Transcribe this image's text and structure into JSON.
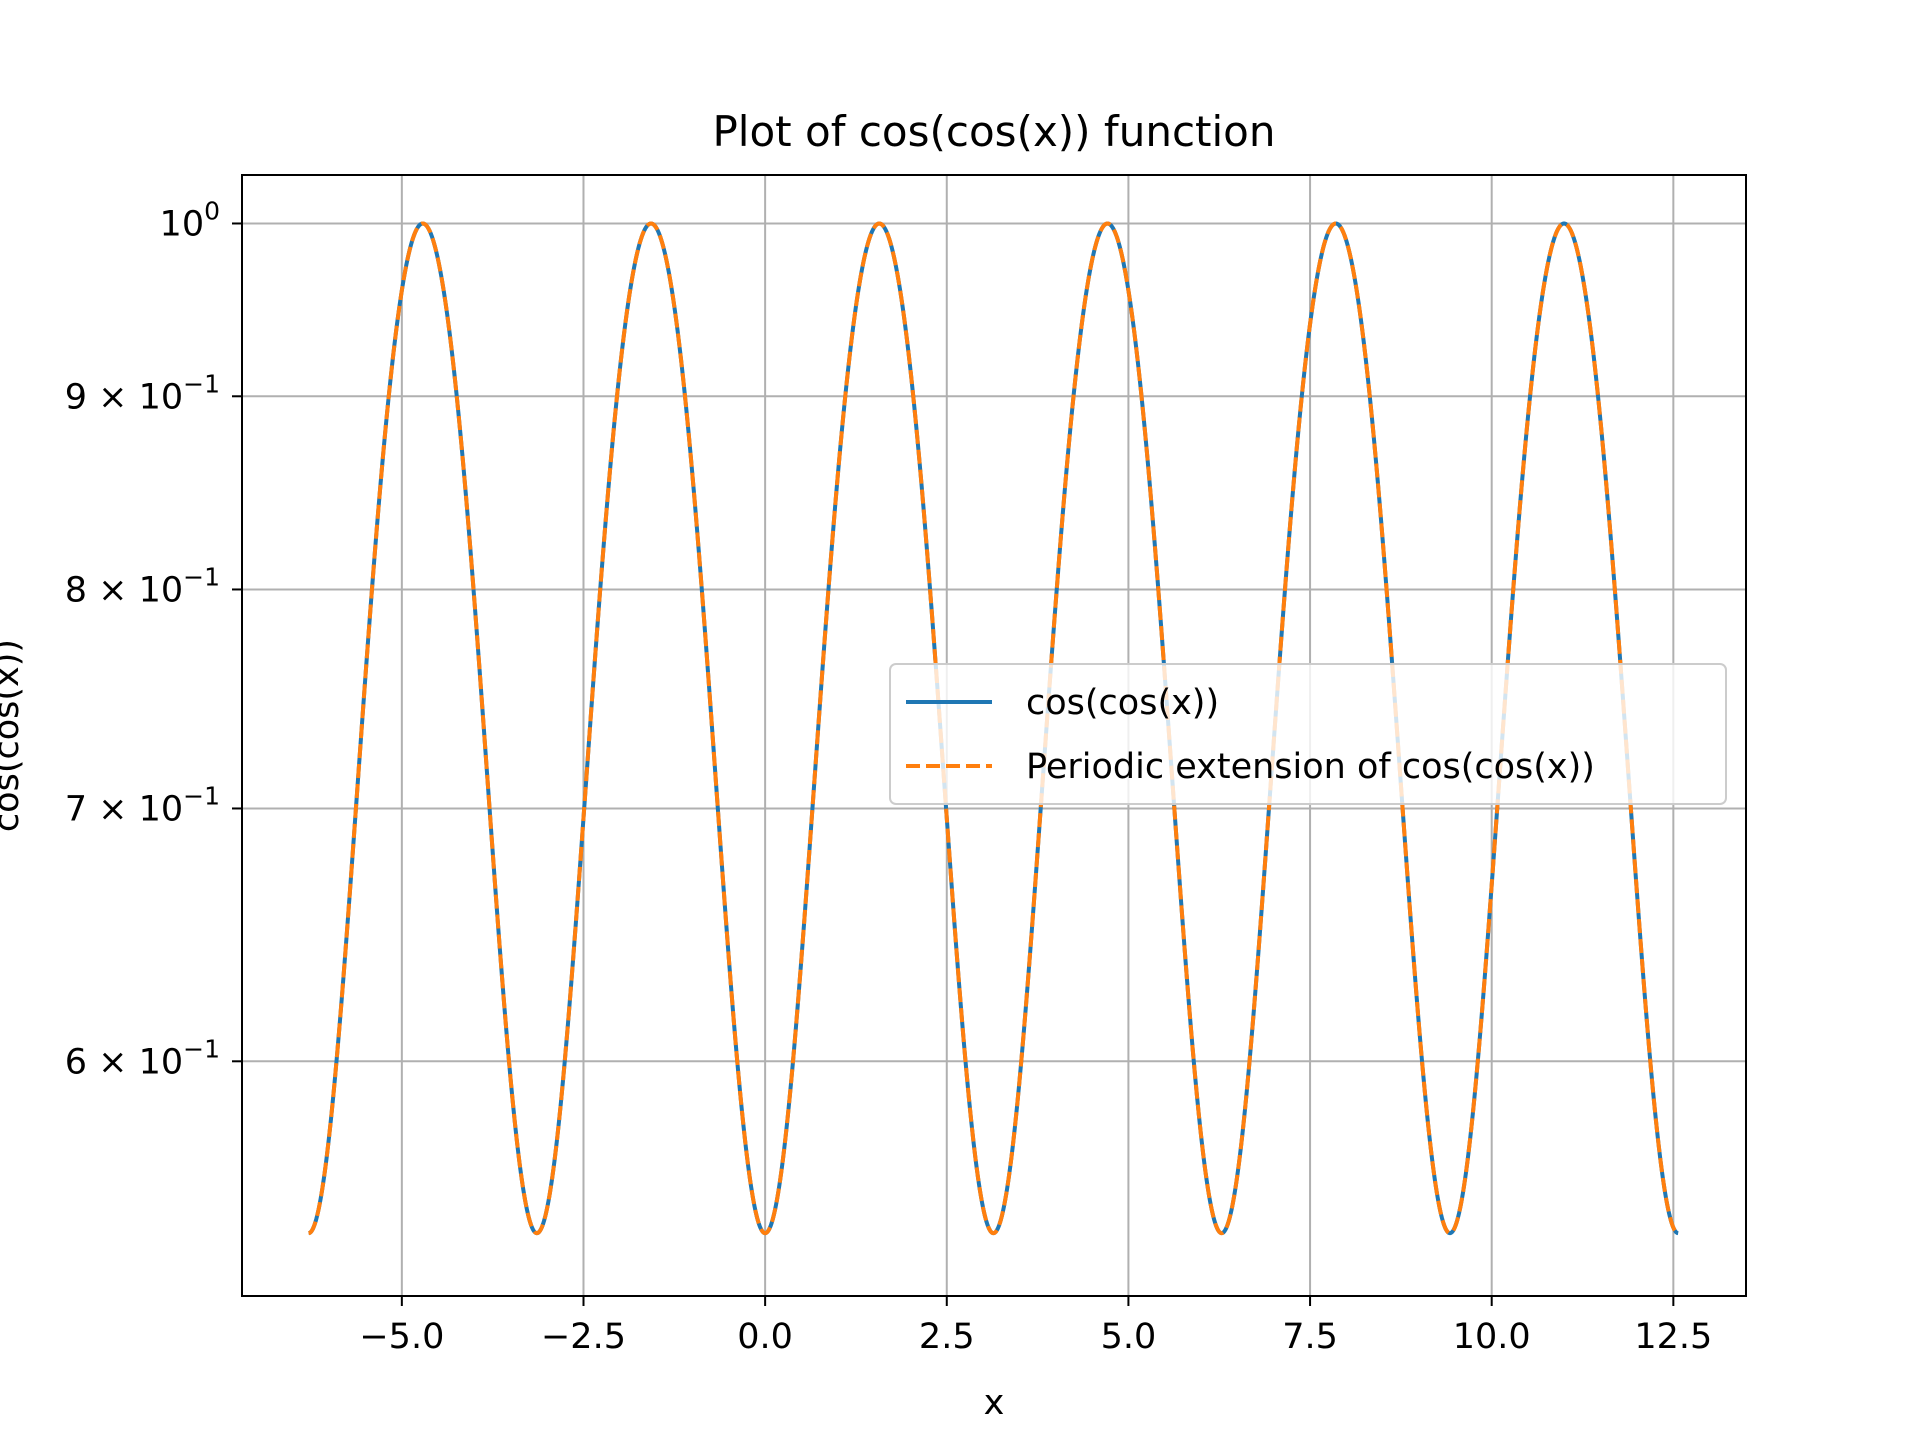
{
  "chart_data": {
    "type": "line",
    "title": "Plot of cos(cos(x)) function",
    "xlabel": "x",
    "ylabel": "cos(cos(x))",
    "xlim": [
      -7.2,
      13.5
    ],
    "ylim": [
      0.52,
      1.03
    ],
    "yscale": "log",
    "grid": true,
    "legend_position": "center-right",
    "x_ticks": [
      -5.0,
      -2.5,
      0.0,
      2.5,
      5.0,
      7.5,
      10.0,
      12.5
    ],
    "x_tick_labels": [
      "−5.0",
      "−2.5",
      "0.0",
      "2.5",
      "5.0",
      "7.5",
      "10.0",
      "12.5"
    ],
    "y_ticks": [
      {
        "value": 1.0,
        "mantissa": "",
        "base": "10",
        "exponent": "0"
      },
      {
        "value": 0.9,
        "mantissa": "9",
        "base": "10",
        "exponent": "−1"
      },
      {
        "value": 0.8,
        "mantissa": "8",
        "base": "10",
        "exponent": "−1"
      },
      {
        "value": 0.7,
        "mantissa": "7",
        "base": "10",
        "exponent": "−1"
      },
      {
        "value": 0.6,
        "mantissa": "6",
        "base": "10",
        "exponent": "−1"
      }
    ],
    "x_range": [
      -6.2832,
      12.5664
    ],
    "series": [
      {
        "name": "cos(cos(x))",
        "function": "cos(cos(x))",
        "color": "#1f77b4",
        "style": "solid"
      },
      {
        "name": "Periodic extension of cos(cos(x))",
        "function": "cos(cos(x))",
        "color": "#ff7f0e",
        "style": "dashed"
      }
    ]
  }
}
